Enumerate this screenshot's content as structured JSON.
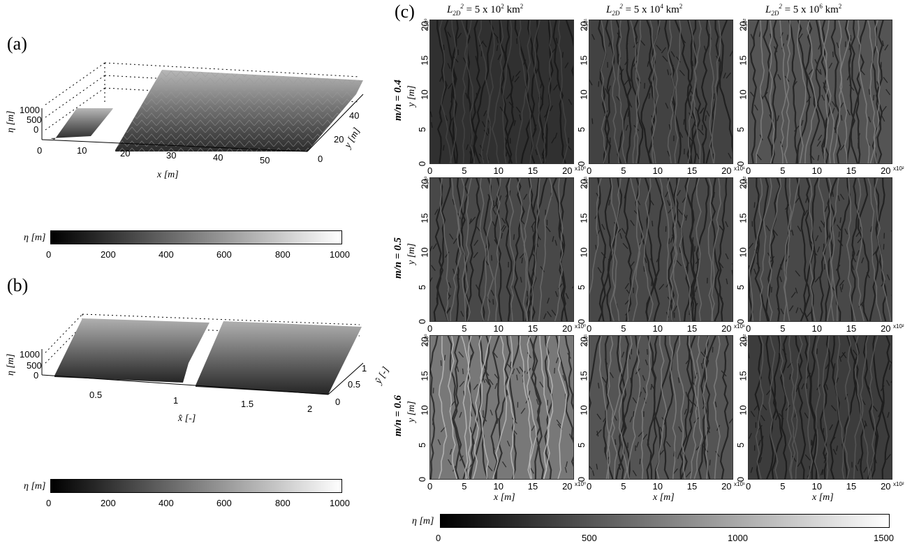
{
  "panel_a": {
    "label": "(a)",
    "z_axis_label": "η [m]",
    "z_ticks": [
      "1000",
      "500",
      "0"
    ],
    "x_axis_label": "x [m]",
    "x_ticks": [
      "0",
      "10",
      "20",
      "30",
      "40",
      "50"
    ],
    "y_axis_label": "y [m]",
    "y_ticks": [
      "0",
      "20",
      "40"
    ],
    "colorbar": {
      "label": "η [m]",
      "ticks": [
        "0",
        "200",
        "400",
        "600",
        "800",
        "1000"
      ],
      "min": 0,
      "max": 1000
    }
  },
  "panel_b": {
    "label": "(b)",
    "z_axis_label": "η [m]",
    "z_ticks": [
      "1000",
      "500",
      "0"
    ],
    "x_axis_label": "x̂ [-]",
    "x_ticks": [
      "0.5",
      "1",
      "1.5",
      "2"
    ],
    "y_axis_label": "ŷ [-]",
    "y_ticks": [
      "0",
      "0.5",
      "1"
    ],
    "colorbar": {
      "label": "η [m]",
      "ticks": [
        "0",
        "200",
        "400",
        "600",
        "800",
        "1000"
      ],
      "min": 0,
      "max": 1000
    }
  },
  "panel_c": {
    "label": "(c)",
    "column_titles": [
      "L2D2 = 5 x 102 km2",
      "L2D2 = 5 x 104 km2",
      "L2D2 = 5 x 106 km2"
    ],
    "column_title_parts": [
      {
        "base": "L",
        "sub": "2D",
        "sup": "2",
        "text": " = 5 x 10",
        "exp": "2",
        "unit": " km",
        "unitexp": "2"
      },
      {
        "base": "L",
        "sub": "2D",
        "sup": "2",
        "text": " = 5 x 10",
        "exp": "4",
        "unit": " km",
        "unitexp": "2"
      },
      {
        "base": "L",
        "sub": "2D",
        "sup": "2",
        "text": " = 5 x 10",
        "exp": "6",
        "unit": " km",
        "unitexp": "2"
      }
    ],
    "row_labels": [
      "m/n = 0.4",
      "m/n = 0.5",
      "m/n = 0.6"
    ],
    "y_axis_label": "y [m]",
    "x_axis_label": "x [m]",
    "axis_ticks": [
      "0",
      "5",
      "10",
      "15",
      "20"
    ],
    "column_multipliers": [
      "x10⁰",
      "x10¹",
      "x10²"
    ],
    "colorbar": {
      "label": "η [m]",
      "ticks": [
        "0",
        "500",
        "1000",
        "1500"
      ],
      "min": 0,
      "max": 1500
    },
    "relief_levels": [
      [
        0.15,
        0.3,
        0.45
      ],
      [
        0.35,
        0.35,
        0.35
      ],
      [
        0.75,
        0.45,
        0.25
      ]
    ]
  }
}
